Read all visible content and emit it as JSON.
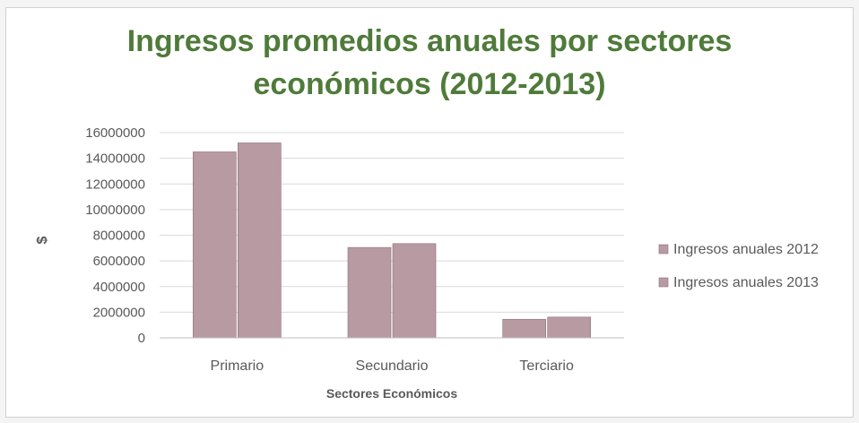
{
  "chart_data": {
    "type": "bar",
    "title_lines": [
      "Ingresos promedios anuales por sectores",
      "económicos (2012-2013)"
    ],
    "xlabel": "Sectores Económicos",
    "ylabel": "$",
    "categories": [
      "Primario",
      "Secundario",
      "Terciario"
    ],
    "series": [
      {
        "name": "Ingresos anuales 2012",
        "values": [
          14500000,
          7050000,
          1450000
        ]
      },
      {
        "name": "Ingresos anuales 2013",
        "values": [
          15200000,
          7350000,
          1620000
        ]
      }
    ],
    "ylim": [
      0,
      16000000
    ],
    "yticks": [
      "0",
      "2000000",
      "4000000",
      "6000000",
      "8000000",
      "10000000",
      "12000000",
      "14000000",
      "16000000"
    ],
    "grid": true,
    "legend": "right",
    "colors": {
      "bar": "#b89aa3",
      "bar_edge": "#8d7078",
      "grid": "#d9d9d9",
      "title": "#4f7b3a",
      "text": "#595959"
    }
  }
}
